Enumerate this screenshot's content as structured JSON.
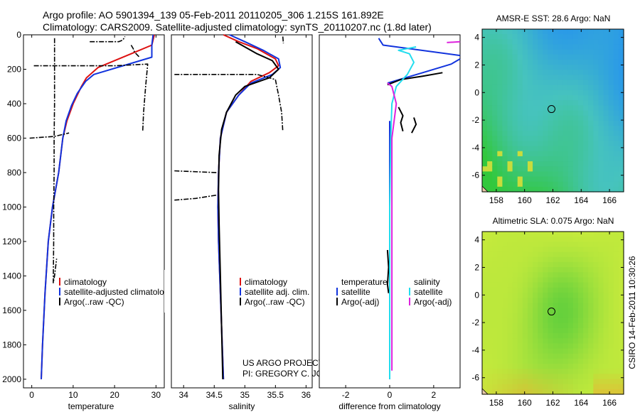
{
  "header": {
    "line1": "Argo profile: AO 5901394_139 05-Feb-2011 20110205_306 1.215S 161.892E",
    "line2": "Climatology: CARS2009. Satellite-adjusted climatology: synTS_20110207.nc (1.8d later)"
  },
  "colors": {
    "clim": "#dd1111",
    "sat": "#1133dd",
    "argo": "#000000",
    "salsat": "#22ddee",
    "argoadj": "#dd22dd"
  },
  "chart_data": [
    {
      "type": "line",
      "id": "temp",
      "xlabel": "temperature",
      "ylabel": "",
      "xlim": [
        -2,
        32
      ],
      "ylim": [
        2050,
        0
      ],
      "yinvert": true,
      "xticks": [
        0,
        10,
        20,
        30
      ],
      "yticks": [
        0,
        200,
        400,
        600,
        800,
        1000,
        1200,
        1400,
        1600,
        1800,
        2000
      ],
      "legend": {
        "position": "bottom-right",
        "entries": [
          "climatology",
          "satellite-adjusted climatology",
          "Argo(..raw -QC)"
        ]
      },
      "series": [
        {
          "name": "climatology",
          "color": "clim",
          "style": "solid",
          "x": [
            29.6,
            29.0,
            24.0,
            16.0,
            13.2,
            12.0,
            10.0,
            8.5,
            7.5,
            6.5,
            5.0,
            4.0,
            3.2,
            2.6,
            2.3
          ],
          "y": [
            0,
            60,
            110,
            190,
            250,
            300,
            400,
            500,
            600,
            800,
            1000,
            1200,
            1500,
            1800,
            2000
          ]
        },
        {
          "name": "satellite-adjusted climatology",
          "color": "sat",
          "style": "solid",
          "x": [
            29.3,
            29.0,
            29.0,
            15.0,
            13.0,
            11.0,
            9.6,
            8.3,
            7.5,
            6.5,
            5.0,
            4.0,
            3.2,
            2.6,
            2.3
          ],
          "y": [
            0,
            60,
            130,
            230,
            270,
            340,
            410,
            500,
            600,
            800,
            1000,
            1200,
            1500,
            1800,
            2000
          ]
        },
        {
          "name": "Argo(..raw -QC)",
          "color": "argo",
          "style": "dashdot",
          "x": [
            5.5,
            5.5,
            5.5,
            5.4,
            5.4,
            5.3,
            5.3,
            5.2,
            5.5,
            6.0
          ],
          "y": [
            20,
            200,
            400,
            600,
            800,
            1000,
            1200,
            1440,
            1400,
            1300
          ]
        },
        {
          "name": "Argo spike",
          "color": "argo",
          "style": "dashdot",
          "x": [
            -0.5,
            5.5,
            9.0
          ],
          "y": [
            600,
            590,
            570
          ]
        },
        {
          "name": "Argo spike",
          "color": "argo",
          "style": "dashdot",
          "x": [
            0.5,
            20,
            28.0,
            27.5,
            27.0,
            26.8
          ],
          "y": [
            180,
            180,
            170,
            300,
            450,
            560
          ]
        },
        {
          "name": "Argo spike",
          "color": "argo",
          "style": "dashdot",
          "x": [
            14.0,
            21.0,
            22.0,
            22.5
          ],
          "y": [
            40,
            40,
            30,
            10
          ]
        },
        {
          "name": "Argo spike",
          "color": "argo",
          "style": "dashdot",
          "x": [
            24.0,
            24.5,
            24.8,
            26.0
          ],
          "y": [
            60,
            80,
            100,
            130
          ]
        }
      ]
    },
    {
      "type": "line",
      "id": "sal",
      "xlabel": "salinity",
      "ylabel": "",
      "xlim": [
        33.8,
        36.1
      ],
      "ylim": [
        2050,
        0
      ],
      "yinvert": true,
      "xticks": [
        34,
        34.5,
        35,
        35.5,
        36
      ],
      "yticks": [],
      "legend": {
        "position": "bottom-right",
        "entries": [
          "climatology",
          "satellite adj. clim.",
          "Argo(..raw -QC)"
        ]
      },
      "annotation": {
        "line1": "US ARGO PROJECT",
        "line2": "PI: GREGORY C. JOHNSON"
      },
      "series": [
        {
          "name": "climatology",
          "color": "clim",
          "style": "solid",
          "x": [
            34.65,
            34.9,
            35.2,
            35.5,
            35.55,
            35.4,
            35.1,
            34.9,
            34.7,
            34.6,
            34.57,
            34.56,
            34.57,
            34.6,
            34.63,
            34.65
          ],
          "y": [
            0,
            40,
            80,
            140,
            180,
            220,
            270,
            350,
            450,
            600,
            800,
            1000,
            1200,
            1500,
            1800,
            2000
          ]
        },
        {
          "name": "satellite adj. clim.",
          "color": "sat",
          "style": "solid",
          "x": [
            34.75,
            35.0,
            35.3,
            35.55,
            35.58,
            35.45,
            35.1,
            34.9,
            34.7,
            34.6,
            34.57,
            34.56,
            34.57,
            34.6,
            34.63,
            34.65
          ],
          "y": [
            0,
            40,
            90,
            140,
            190,
            230,
            280,
            350,
            450,
            600,
            800,
            1000,
            1200,
            1500,
            1800,
            2000
          ]
        },
        {
          "name": "Argo(..raw -QC)",
          "color": "argo",
          "style": "solid",
          "x": [
            34.85,
            35.2,
            35.45,
            35.55,
            35.4,
            35.0,
            34.85,
            34.7,
            34.62,
            34.58,
            34.57,
            34.58,
            34.6,
            34.62,
            34.64
          ],
          "y": [
            40,
            110,
            150,
            200,
            250,
            300,
            350,
            450,
            550,
            700,
            900,
            1100,
            1400,
            1700,
            2000
          ]
        },
        {
          "name": "Argo spike",
          "color": "argo",
          "style": "dashdot",
          "x": [
            33.85,
            35.2,
            35.5,
            35.55,
            35.6,
            35.62
          ],
          "y": [
            230,
            230,
            260,
            350,
            450,
            560
          ]
        },
        {
          "name": "Argo spike",
          "color": "argo",
          "style": "dashdot",
          "x": [
            33.85,
            34.55
          ],
          "y": [
            790,
            800
          ]
        },
        {
          "name": "Argo spike",
          "color": "argo",
          "style": "dashdot",
          "x": [
            33.85,
            34.2,
            34.55
          ],
          "y": [
            960,
            950,
            930
          ]
        },
        {
          "name": "Argo spike",
          "color": "argo",
          "style": "dashdot",
          "x": [
            35.62,
            35.63
          ],
          "y": [
            10,
            50
          ]
        }
      ]
    },
    {
      "type": "line",
      "id": "diff",
      "xlabel": "difference from climatology",
      "ylabel": "",
      "xlim": [
        -3.2,
        3.2
      ],
      "ylim": [
        2050,
        0
      ],
      "yinvert": true,
      "xticks": [
        -2,
        0,
        2
      ],
      "yticks": [],
      "legend": {
        "position": "bottom-right",
        "headers": [
          "temperature",
          "salinity"
        ],
        "entries": [
          "satellite",
          "Argo(-adj)",
          "satellite",
          "Argo(-adj)"
        ]
      },
      "series": [
        {
          "name": "temperature satellite",
          "color": "sat",
          "style": "solid",
          "x": [
            -0.5,
            -0.3,
            3.2
          ],
          "y": [
            20,
            60,
            120
          ]
        },
        {
          "name": "temperature satellite 2",
          "color": "sat",
          "style": "solid",
          "x": [
            -0.1,
            1.5,
            2.8,
            3.2
          ],
          "y": [
            280,
            220,
            170,
            140
          ]
        },
        {
          "name": "temperature satellite deep",
          "color": "sat",
          "style": "solid",
          "x": [
            0.0,
            0.0,
            0.0,
            0.0
          ],
          "y": [
            500,
            1000,
            1500,
            2000
          ]
        },
        {
          "name": "temperature Argo(-adj)",
          "color": "argo",
          "style": "solid",
          "x": [
            -0.1,
            0.5,
            1.5,
            2.4
          ],
          "y": [
            290,
            260,
            240,
            220
          ]
        },
        {
          "name": "temperature Argo(-adj)",
          "color": "argo",
          "style": "solid",
          "x": [
            0.4,
            0.6,
            0.5,
            0.6
          ],
          "y": [
            420,
            470,
            510,
            560
          ]
        },
        {
          "name": "temperature Argo(-adj)",
          "color": "argo",
          "style": "solid",
          "x": [
            1.1,
            1.2,
            1.0
          ],
          "y": [
            480,
            520,
            570
          ]
        },
        {
          "name": "temperature Argo(-adj)",
          "color": "argo",
          "style": "solid",
          "x": [
            -0.1,
            -0.05,
            -0.1,
            -0.05
          ],
          "y": [
            1250,
            1350,
            1450,
            1500
          ]
        },
        {
          "name": "salinity satellite",
          "color": "salsat",
          "style": "solid",
          "x": [
            1.2,
            0.4,
            0.9,
            1.1,
            0.8,
            0.3,
            0.1,
            0.05,
            0.0,
            0.0,
            0.0
          ],
          "y": [
            70,
            90,
            110,
            160,
            230,
            300,
            400,
            600,
            1000,
            1500,
            2000
          ]
        },
        {
          "name": "salinity Argo(-adj)",
          "color": "argoadj",
          "style": "solid",
          "x": [
            -0.1,
            0.1,
            0.2,
            0.3,
            0.2,
            0.1,
            0.1,
            0.1,
            0.1
          ],
          "y": [
            280,
            300,
            350,
            400,
            500,
            600,
            1300,
            1700,
            1950
          ]
        },
        {
          "name": "salinity Argo(-adj)",
          "color": "argoadj",
          "style": "solid",
          "x": [
            2.6,
            3.2
          ],
          "y": [
            45,
            40
          ]
        }
      ]
    }
  ],
  "maps": [
    {
      "id": "sst",
      "title": "AMSR-E SST: 28.6 Argo: NaN",
      "xlim": [
        157,
        167
      ],
      "ylim": [
        -7.2,
        4.6
      ],
      "xticks": [
        158,
        160,
        162,
        164,
        166
      ],
      "yticks": [
        4,
        2,
        0,
        -2,
        -4,
        -6
      ],
      "marker": {
        "lon": 161.9,
        "lat": -1.2
      }
    },
    {
      "id": "sla",
      "title": "Altimetric SLA: 0.075 Argo: NaN",
      "xlim": [
        157,
        167
      ],
      "ylim": [
        -7.2,
        4.6
      ],
      "xticks": [
        158,
        160,
        162,
        164,
        166
      ],
      "yticks": [
        4,
        2,
        0,
        -2,
        -4,
        -6
      ],
      "marker": {
        "lon": 161.9,
        "lat": -1.2
      }
    }
  ],
  "footer": {
    "credit": "CSIRO 14-Feb-2011 10:30:26"
  }
}
